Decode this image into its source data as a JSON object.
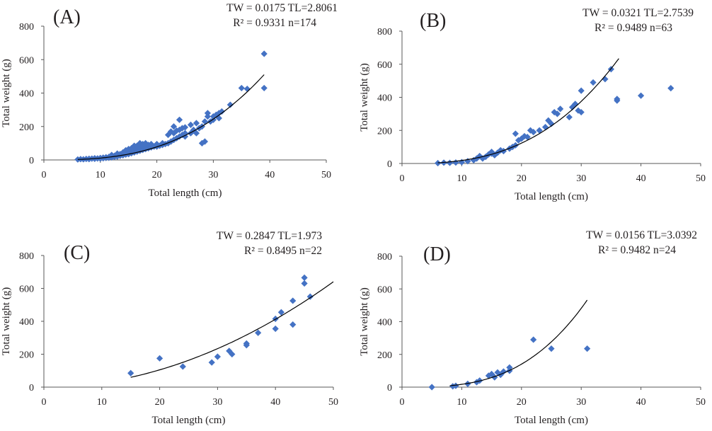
{
  "colors": {
    "marker": "#4472c4",
    "curve": "#000000",
    "axis": "#595959",
    "text": "#231f20"
  },
  "chart_data": [
    {
      "type": "scatter",
      "panel": "(A)",
      "equation_line1": "TW = 0.0175   TL=2.8061",
      "equation_line2": "R² = 0.9331  n=174",
      "fit": {
        "a": 0.0175,
        "b": 2.8061,
        "x_range": [
          6,
          39
        ]
      },
      "xlabel": "Total length (cm)",
      "ylabel": "Total weight (g)",
      "xlim": [
        0,
        50
      ],
      "ylim": [
        0,
        800
      ],
      "xticks": [
        0,
        10,
        20,
        30,
        40,
        50
      ],
      "yticks": [
        0,
        200,
        400,
        600,
        800
      ],
      "points": [
        [
          6,
          3
        ],
        [
          6.5,
          5
        ],
        [
          7,
          4
        ],
        [
          7.5,
          6
        ],
        [
          8,
          5
        ],
        [
          8,
          7
        ],
        [
          8.5,
          8
        ],
        [
          9,
          7
        ],
        [
          9,
          10
        ],
        [
          9.5,
          9
        ],
        [
          10,
          8
        ],
        [
          10,
          12
        ],
        [
          10.5,
          14
        ],
        [
          10.5,
          10
        ],
        [
          11,
          12
        ],
        [
          11,
          16
        ],
        [
          11.5,
          18
        ],
        [
          11.5,
          13
        ],
        [
          12,
          15
        ],
        [
          12,
          20
        ],
        [
          12,
          30
        ],
        [
          12.5,
          18
        ],
        [
          12.5,
          25
        ],
        [
          13,
          20
        ],
        [
          13,
          28
        ],
        [
          13,
          38
        ],
        [
          13.5,
          25
        ],
        [
          13.5,
          35
        ],
        [
          14,
          28
        ],
        [
          14,
          38
        ],
        [
          14,
          45
        ],
        [
          14.5,
          32
        ],
        [
          14.5,
          45
        ],
        [
          14.5,
          58
        ],
        [
          15,
          35
        ],
        [
          15,
          50
        ],
        [
          15,
          65
        ],
        [
          15.5,
          40
        ],
        [
          15.5,
          55
        ],
        [
          15.5,
          70
        ],
        [
          16,
          45
        ],
        [
          16,
          60
        ],
        [
          16,
          75
        ],
        [
          16,
          85
        ],
        [
          16.5,
          50
        ],
        [
          16.5,
          70
        ],
        [
          16.5,
          85
        ],
        [
          17,
          55
        ],
        [
          17,
          70
        ],
        [
          17,
          90
        ],
        [
          17,
          100
        ],
        [
          17.5,
          60
        ],
        [
          17.5,
          80
        ],
        [
          17.5,
          95
        ],
        [
          18,
          65
        ],
        [
          18,
          85
        ],
        [
          18,
          100
        ],
        [
          18.5,
          70
        ],
        [
          18.5,
          90
        ],
        [
          19,
          75
        ],
        [
          19,
          95
        ],
        [
          19.5,
          80
        ],
        [
          20,
          80
        ],
        [
          20,
          95
        ],
        [
          20.5,
          85
        ],
        [
          21,
          90
        ],
        [
          21,
          100
        ],
        [
          21.5,
          95
        ],
        [
          22,
          100
        ],
        [
          22,
          150
        ],
        [
          22.5,
          110
        ],
        [
          22.5,
          170
        ],
        [
          23,
          120
        ],
        [
          23,
          160
        ],
        [
          23,
          200
        ],
        [
          23.5,
          130
        ],
        [
          23.5,
          175
        ],
        [
          24,
          140
        ],
        [
          24,
          180
        ],
        [
          24,
          240
        ],
        [
          24.5,
          150
        ],
        [
          24.5,
          190
        ],
        [
          25,
          140
        ],
        [
          25,
          160
        ],
        [
          25,
          195
        ],
        [
          26,
          160
        ],
        [
          26,
          210
        ],
        [
          26.5,
          180
        ],
        [
          27,
          160
        ],
        [
          27,
          220
        ],
        [
          27.5,
          190
        ],
        [
          28,
          100
        ],
        [
          28,
          200
        ],
        [
          28.5,
          230
        ],
        [
          28.5,
          110
        ],
        [
          29,
          260
        ],
        [
          29,
          280
        ],
        [
          29.5,
          230
        ],
        [
          30,
          240
        ],
        [
          30,
          260
        ],
        [
          30.5,
          270
        ],
        [
          31,
          280
        ],
        [
          31,
          250
        ],
        [
          31.5,
          290
        ],
        [
          33,
          330
        ],
        [
          35,
          430
        ],
        [
          36,
          425
        ],
        [
          39,
          430
        ],
        [
          39,
          635
        ]
      ]
    },
    {
      "type": "scatter",
      "panel": "(B)",
      "equation_line1": "TW = 0.0321   TL=2.7539",
      "equation_line2": "R² = 0.9489  n=63",
      "fit": {
        "a": 0.0321,
        "b": 2.7539,
        "x_range": [
          6,
          36.3
        ]
      },
      "xlabel": "Total length (cm)",
      "ylabel": "Total weight (g)",
      "xlim": [
        0,
        50
      ],
      "ylim": [
        0,
        800
      ],
      "xticks": [
        0,
        10,
        20,
        30,
        40,
        50
      ],
      "yticks": [
        0,
        200,
        400,
        600,
        800
      ],
      "points": [
        [
          6,
          2
        ],
        [
          7,
          5
        ],
        [
          8,
          4
        ],
        [
          9,
          6
        ],
        [
          10,
          8
        ],
        [
          11,
          14
        ],
        [
          12,
          20
        ],
        [
          12.5,
          30
        ],
        [
          13,
          45
        ],
        [
          13.5,
          30
        ],
        [
          14,
          40
        ],
        [
          14.5,
          55
        ],
        [
          15,
          60
        ],
        [
          15,
          70
        ],
        [
          15.5,
          50
        ],
        [
          16,
          65
        ],
        [
          16.5,
          80
        ],
        [
          17,
          75
        ],
        [
          18,
          90
        ],
        [
          18.5,
          100
        ],
        [
          19,
          110
        ],
        [
          19,
          180
        ],
        [
          19.5,
          140
        ],
        [
          20,
          150
        ],
        [
          20.5,
          165
        ],
        [
          21,
          160
        ],
        [
          21.5,
          200
        ],
        [
          22,
          190
        ],
        [
          23,
          200
        ],
        [
          24,
          220
        ],
        [
          24.5,
          260
        ],
        [
          25,
          240
        ],
        [
          25.5,
          310
        ],
        [
          26,
          300
        ],
        [
          26.5,
          330
        ],
        [
          28,
          280
        ],
        [
          28.5,
          340
        ],
        [
          29,
          360
        ],
        [
          29.5,
          320
        ],
        [
          30,
          310
        ],
        [
          30,
          440
        ],
        [
          32,
          490
        ],
        [
          34,
          510
        ],
        [
          35,
          570
        ],
        [
          36,
          380
        ],
        [
          36,
          390
        ],
        [
          40,
          410
        ],
        [
          45,
          455
        ]
      ]
    },
    {
      "type": "scatter",
      "panel": "(C)",
      "equation_line1": "TW = 0.2847     TL=1.973",
      "equation_line2": "R² = 0.8495     n=22",
      "fit": {
        "a": 0.2847,
        "b": 1.973,
        "x_range": [
          15,
          50
        ]
      },
      "xlabel": "Total length (cm)",
      "ylabel": "Total weight (g)",
      "xlim": [
        0,
        50
      ],
      "ylim": [
        0,
        800
      ],
      "xticks": [
        0,
        10,
        20,
        30,
        40,
        50
      ],
      "yticks": [
        0,
        200,
        400,
        600,
        800
      ],
      "points": [
        [
          15,
          85
        ],
        [
          20,
          175
        ],
        [
          24,
          125
        ],
        [
          29,
          150
        ],
        [
          30,
          185
        ],
        [
          32,
          220
        ],
        [
          32.5,
          200
        ],
        [
          35,
          255
        ],
        [
          35,
          265
        ],
        [
          37,
          330
        ],
        [
          40,
          355
        ],
        [
          40,
          415
        ],
        [
          41,
          455
        ],
        [
          43,
          380
        ],
        [
          43,
          525
        ],
        [
          45,
          630
        ],
        [
          45,
          665
        ],
        [
          46,
          550
        ]
      ]
    },
    {
      "type": "scatter",
      "panel": "(D)",
      "equation_line1": "TW = 0.0156     TL=3.0392",
      "equation_line2": "R² = 0.9482   n=24",
      "fit": {
        "a": 0.0156,
        "b": 3.0392,
        "x_range": [
          8,
          31
        ]
      },
      "xlabel": "Total length (cm)",
      "ylabel": "Total weight (g)",
      "xlim": [
        0,
        50
      ],
      "ylim": [
        0,
        800
      ],
      "xticks": [
        0,
        10,
        20,
        30,
        40,
        50
      ],
      "yticks": [
        0,
        200,
        400,
        600,
        800
      ],
      "points": [
        [
          5,
          0
        ],
        [
          8.5,
          5
        ],
        [
          9,
          8
        ],
        [
          11,
          20
        ],
        [
          12.5,
          30
        ],
        [
          13,
          40
        ],
        [
          14.5,
          70
        ],
        [
          15,
          80
        ],
        [
          15.5,
          60
        ],
        [
          16,
          90
        ],
        [
          16.5,
          75
        ],
        [
          17,
          95
        ],
        [
          18,
          100
        ],
        [
          18,
          120
        ],
        [
          22,
          290
        ],
        [
          25,
          235
        ],
        [
          31,
          235
        ]
      ]
    }
  ]
}
